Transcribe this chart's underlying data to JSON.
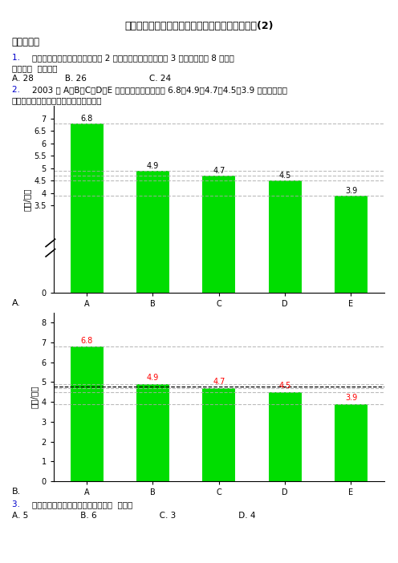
{
  "title": "》压轴卷》小学4年级数学上期末一模试卷附答案(2)",
  "title_display": "[压轴卷] 小学4年级数学上期末一模试卷附答案(2)",
  "section1": "一、选择题",
  "q1_line1": "用平底锅烙饼，每次最多只能烙 2 张饼，两面都要烙，每面 3 分钟。妈妈烙 8 张饼至",
  "q1_line2": "少要用（  ）分钟。",
  "q1_options": "A. 28            B. 26                        C. 24",
  "q2_line1": "2003 年 A、B、C、D、E 五种輧7车的产量分别为 6.8、4.9、4.7、4.5、3.9 万辆，下面哪",
  "q2_line2": "个图更能真实地反映它们产量上的差距？",
  "categories": [
    "A",
    "B",
    "C",
    "D",
    "E"
  ],
  "values": [
    6.8,
    4.9,
    4.7,
    4.5,
    3.9
  ],
  "bar_color": "#00DD00",
  "ylabel": "产量/万台",
  "chart1_yticks": [
    0,
    3.5,
    4.0,
    4.5,
    5.0,
    5.5,
    6.0,
    6.5,
    7.0
  ],
  "chart1_ytick_labels": [
    "0",
    "3.5",
    "4",
    "4.5",
    "5",
    "5.5",
    "6",
    "6.5",
    "7"
  ],
  "chart2_yticks": [
    0,
    1,
    2,
    3,
    4,
    5,
    6,
    7,
    8
  ],
  "chart2_ytick_labels": [
    "0",
    "1",
    "2",
    "3",
    "4",
    "5",
    "6",
    "7",
    "8"
  ],
  "answer_a": "A.",
  "answer_b": "B.",
  "q3_line1": "一个正方形中，互相垂直的线段有（  ）对。",
  "q3_options": "A. 5                    B. 6                        C. 3                        D. 4",
  "gray_dash": "#AAAAAA",
  "black_dash": "#000000",
  "blue_color": "#0000CC",
  "red_color": "#FF0000",
  "black_color": "#000000"
}
